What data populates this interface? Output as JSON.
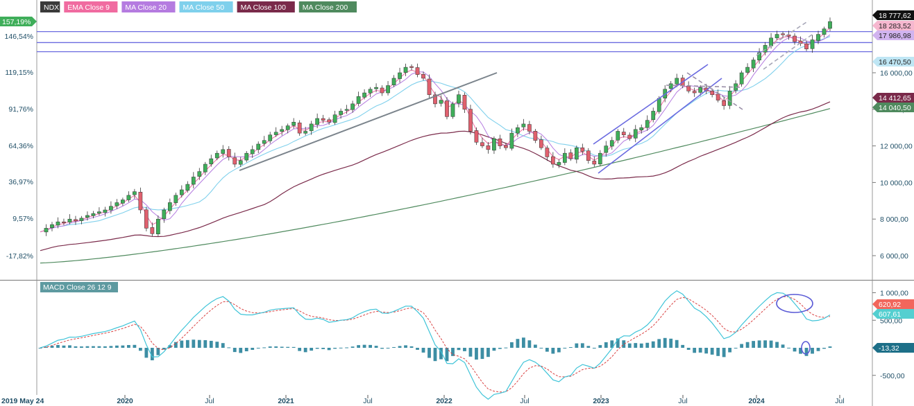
{
  "chart_data": {
    "type": "line",
    "main_panel": {
      "legend": [
        {
          "label": "NDX",
          "color": "#3a3a3a"
        },
        {
          "label": "EMA Close 9",
          "color": "#f06ba0"
        },
        {
          "label": "MA Close 20",
          "color": "#b57be0"
        },
        {
          "label": "MA Close 50",
          "color": "#7fd0ec"
        },
        {
          "label": "MA Close 100",
          "color": "#7a2a4a"
        },
        {
          "label": "MA Close 200",
          "color": "#4f8a5e"
        }
      ],
      "left_ticks": [
        "157,19%",
        "146,54%",
        "119,15%",
        "91,76%",
        "64,36%",
        "36,97%",
        "9,57%",
        "-17,82%"
      ],
      "right_ticks": [
        "16 000,00",
        "14 000,00",
        "12 000,00",
        "10 000,00",
        "8 000,00",
        "6 000,00"
      ],
      "ylim": [
        4800,
        19800
      ],
      "right_badges": [
        {
          "label": "18 777,62",
          "value": 18777.62,
          "bg": "#111111",
          "fg": "#ffffff"
        },
        {
          "label": "18 283,52",
          "value": 18283.52,
          "bg": "#f6b7cf",
          "fg": "#222222"
        },
        {
          "label": "17 986,98",
          "value": 17986.98,
          "bg": "#d1b3ef",
          "fg": "#222222"
        },
        {
          "label": "16 470,50",
          "value": 16470.5,
          "bg": "#bfe6f4",
          "fg": "#222222"
        },
        {
          "label": "14 412,65",
          "value": 14412.65,
          "bg": "#7a2a4a",
          "fg": "#ffffff"
        },
        {
          "label": "14 040,50",
          "value": 14040.5,
          "bg": "#4f8a5e",
          "fg": "#ffffff"
        }
      ],
      "left_badge": {
        "label": "157,19%",
        "bg": "#3fae5a",
        "fg": "#ffffff"
      },
      "horizontal_levels": [
        18250,
        17650,
        17150
      ],
      "close": [
        7300,
        7500,
        7700,
        7850,
        7800,
        8000,
        7900,
        8050,
        8200,
        8300,
        8400,
        8500,
        8700,
        8900,
        9050,
        9300,
        9500,
        8500,
        7500,
        7200,
        8000,
        8500,
        8900,
        9300,
        9600,
        9900,
        10300,
        10600,
        11000,
        11300,
        11600,
        11800,
        11400,
        11000,
        11200,
        11600,
        11800,
        12100,
        12300,
        12600,
        12750,
        12900,
        13100,
        13300,
        12700,
        12800,
        13200,
        13500,
        13400,
        13300,
        13700,
        13900,
        14000,
        14300,
        14700,
        14900,
        15100,
        15200,
        14900,
        15300,
        15700,
        16000,
        16300,
        16300,
        15900,
        15700,
        14800,
        14300,
        14500,
        13600,
        14300,
        14800,
        14000,
        12800,
        12200,
        12000,
        11800,
        12400,
        12000,
        11900,
        12700,
        13000,
        13200,
        12800,
        12300,
        11900,
        11400,
        11000,
        11100,
        11600,
        11300,
        11900,
        11700,
        11200,
        11000,
        11600,
        12000,
        12300,
        12800,
        12600,
        12400,
        12900,
        13000,
        13400,
        13900,
        14600,
        15100,
        15400,
        15700,
        15300,
        15000,
        14900,
        15200,
        15000,
        14800,
        14500,
        14200,
        15000,
        15400,
        16000,
        16300,
        16700,
        17100,
        17500,
        17900,
        18100,
        18100,
        18000,
        17700,
        17600,
        17300,
        17800,
        18100,
        18400,
        18800
      ]
    },
    "macd_panel": {
      "title": "MACD Close 26 12 9",
      "ticks": [
        "1 000,00",
        "500,00",
        "-500,00"
      ],
      "ylim": [
        -700,
        1150
      ],
      "badges": [
        {
          "label": "620,92",
          "value": 620.92,
          "bg": "#f2665c",
          "fg": "#ffffff"
        },
        {
          "label": "607,61",
          "value": 607.61,
          "bg": "#54cfd0",
          "fg": "#ffffff"
        },
        {
          "label": "-13,32",
          "value": -13.32,
          "bg": "#1d6f88",
          "fg": "#ffffff"
        }
      ]
    },
    "x_labels": [
      "2019 May 24",
      "2020",
      "Jul",
      "2021",
      "Jul",
      "2022",
      "Jul",
      "2023",
      "Jul",
      "2024",
      "Jul"
    ],
    "colors": {
      "up": "#3fae5a",
      "down": "#e0606e",
      "accent": "#5a5ad6"
    }
  }
}
